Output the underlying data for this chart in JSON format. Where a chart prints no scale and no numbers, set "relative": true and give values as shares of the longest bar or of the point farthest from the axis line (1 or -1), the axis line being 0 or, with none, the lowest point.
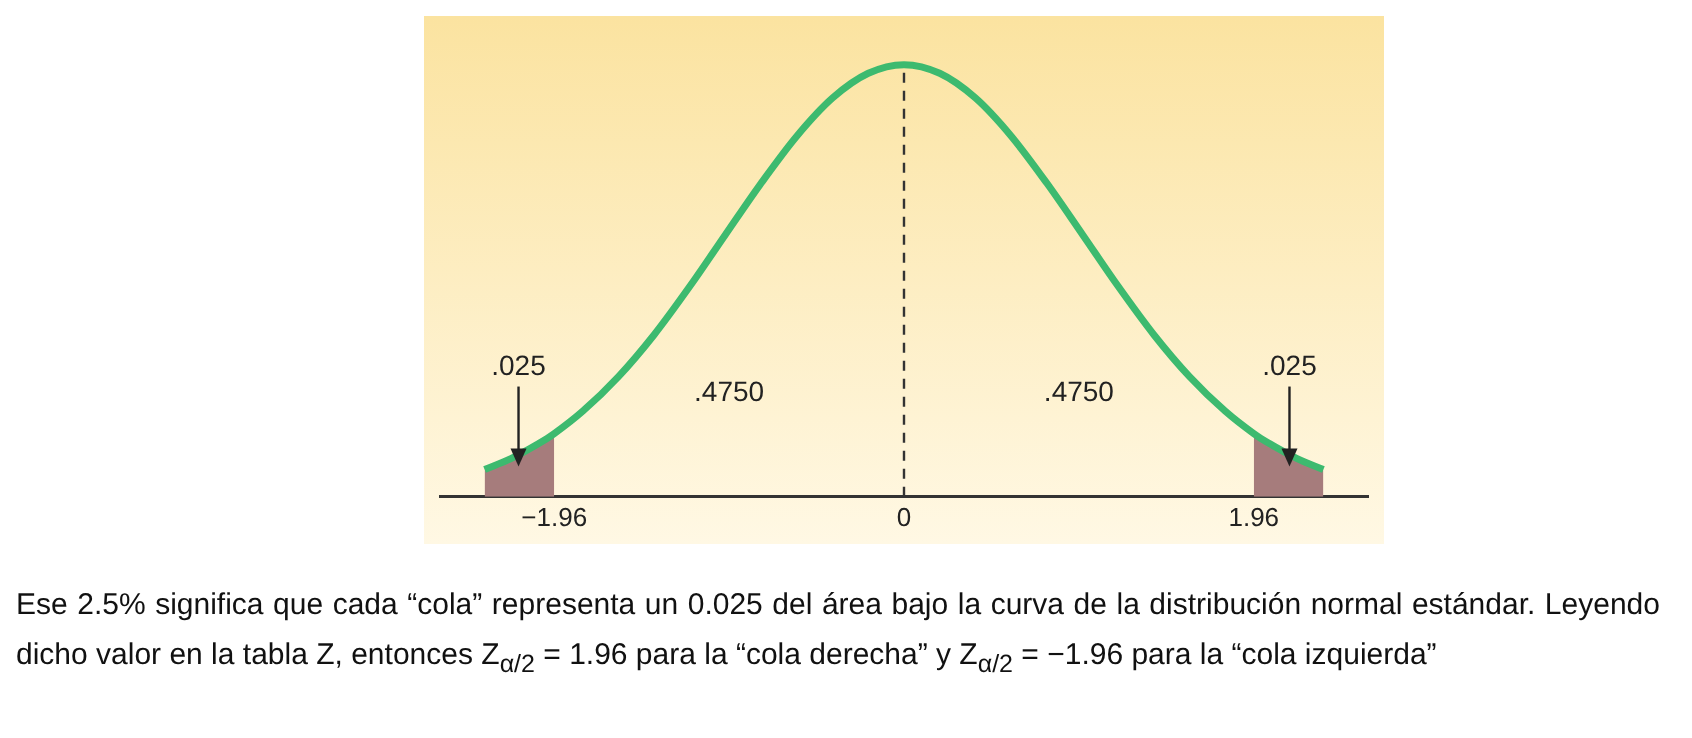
{
  "chart_data": {
    "type": "line",
    "relative": true,
    "legend": false,
    "grid": false,
    "marker": "none",
    "line_style": "solid",
    "xlim": [
      -2.6,
      2.6
    ],
    "xticks": [
      {
        "value": -1.96,
        "label": "−1.96"
      },
      0,
      1.96
    ],
    "series": [
      {
        "color": "#3dba6f",
        "x": [
          -2.35,
          -2.2,
          -2.0,
          -1.96,
          -1.8,
          -1.6,
          -1.4,
          -1.2,
          -1.0,
          -0.8,
          -0.6,
          -0.4,
          -0.2,
          0,
          0.2,
          0.4,
          0.6,
          0.8,
          1.0,
          1.2,
          1.4,
          1.6,
          1.8,
          1.96,
          2.0,
          2.2,
          2.35
        ],
        "values": [
          0.063,
          0.089,
          0.135,
          0.146,
          0.198,
          0.278,
          0.375,
          0.487,
          0.607,
          0.726,
          0.835,
          0.923,
          0.98,
          1,
          0.98,
          0.923,
          0.835,
          0.726,
          0.607,
          0.487,
          0.375,
          0.278,
          0.198,
          0.146,
          0.135,
          0.089,
          0.063
        ]
      },
      {
        "type": "area",
        "color": "#a67c7c",
        "x": [
          -2.35,
          -2.2,
          -2.0,
          -1.96
        ],
        "values": [
          0.063,
          0.089,
          0.135,
          0.146
        ]
      },
      {
        "type": "area",
        "color": "#a67c7c",
        "x": [
          1.96,
          2.0,
          2.2,
          2.35
        ],
        "values": [
          0.146,
          0.135,
          0.089,
          0.063
        ]
      }
    ],
    "ref_lines": [
      {
        "axis": "x",
        "value": 0,
        "line_style": "dashed",
        "color": "#333333"
      }
    ],
    "annotations": [
      {
        "text": ".025",
        "x": -2.16,
        "y": 0.07
      },
      ".4750",
      ".4750",
      {
        "text": ".025",
        "x": 2.16,
        "y": 0.07
      },
      "Ese 2.5% significa que cada “cola” representa un 0.025 del área bajo la curva de la distribución normal estándar. Leyendo dicho valor en la tabla Z, entonces Z$_{α/2}$ = 1.96 para la “cola derecha” y Z$_{α/2}$ = −1.96 para la “cola izquierda”"
    ]
  }
}
